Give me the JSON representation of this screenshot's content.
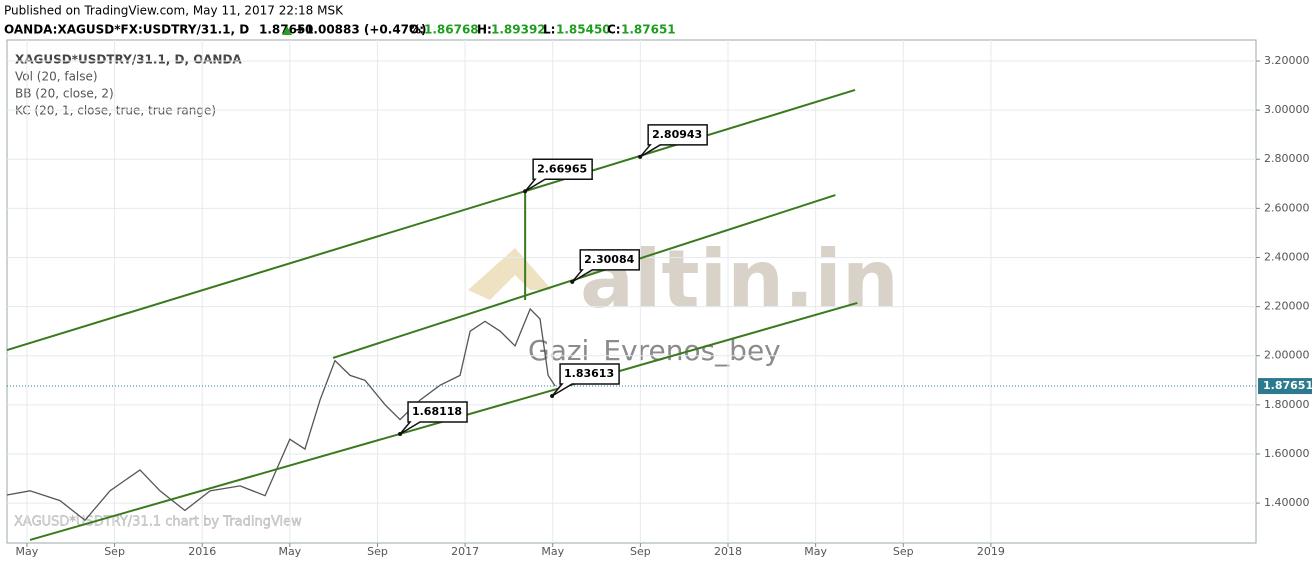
{
  "header": {
    "published": "Published on TradingView.com, May 11, 2017 22:18 MSK",
    "symbol": "OANDA:XAGUSD*FX:USDTRY/31.1, D",
    "last": "1.87651",
    "change": "+0.00883 (+0.47%)",
    "o_label": "O:",
    "o": "1.86768",
    "h_label": "H:",
    "h": "1.89392",
    "l_label": "L:",
    "l": "1.85450",
    "c_label": "C:",
    "c": "1.87651"
  },
  "legend": [
    "XAGUSD*USDTRY/31.1, D, OANDA",
    "Vol (20, false)",
    "BB (20, close, 2)",
    "KC (20, 1, close, true, true range)"
  ],
  "watermark": {
    "logo": "altin.in",
    "author": "Gazi_Evrenos_bey",
    "credit": "XAGUSD*USDTRY/31.1 chart by TradingView"
  },
  "chart_data": {
    "type": "line",
    "color": "#555555",
    "trend_color": "#3a7a1e",
    "x": [
      -0.91,
      0.14,
      1.51,
      2.65,
      3.79,
      5.16,
      6.07,
      7.21,
      8.36,
      9.73,
      10.87,
      12.0,
      12.69,
      13.38,
      14.06,
      14.75,
      15.43,
      16.35,
      17.03,
      17.95,
      18.86,
      19.77,
      20.23,
      20.91,
      21.6,
      22.28,
      22.97,
      23.42,
      23.79,
      24.11
    ],
    "values": [
      1.433,
      1.45,
      1.41,
      1.33,
      1.45,
      1.535,
      1.45,
      1.37,
      1.45,
      1.47,
      1.43,
      1.66,
      1.62,
      1.82,
      1.98,
      1.92,
      1.9,
      1.8,
      1.74,
      1.82,
      1.88,
      1.92,
      2.1,
      2.14,
      2.1,
      2.04,
      2.19,
      2.15,
      1.92,
      1.87651
    ],
    "last_value": 1.87651,
    "trend_lines": [
      {
        "x": [
          -0.91,
          37.8
        ],
        "values": [
          2.023,
          3.082
        ]
      },
      {
        "x": [
          13.97,
          36.9
        ],
        "values": [
          1.991,
          2.654
        ]
      },
      {
        "x": [
          0.14,
          37.9
        ],
        "values": [
          1.25,
          2.215
        ]
      },
      {
        "x": [
          22.74,
          22.74
        ],
        "values": [
          2.227,
          2.66965
        ]
      }
    ],
    "callouts": [
      {
        "x": 27.99,
        "value": 2.80943
      },
      {
        "x": 22.74,
        "value": 2.66965
      },
      {
        "x": 24.89,
        "value": 2.30084
      },
      {
        "x": 23.97,
        "value": 1.83613
      },
      {
        "x": 17.03,
        "value": 1.68118
      }
    ],
    "xlim": [
      -0.91,
      56.1
    ],
    "xticks": [
      {
        "value": 0,
        "label": "May"
      },
      {
        "value": 4,
        "label": "Sep"
      },
      {
        "value": 8,
        "label": "2016"
      },
      {
        "value": 12,
        "label": "May"
      },
      {
        "value": 16,
        "label": "Sep"
      },
      {
        "value": 20,
        "label": "2017"
      },
      {
        "value": 24,
        "label": "May"
      },
      {
        "value": 28,
        "label": "Sep"
      },
      {
        "value": 32,
        "label": "2018"
      },
      {
        "value": 36,
        "label": "May"
      },
      {
        "value": 40,
        "label": "Sep"
      },
      {
        "value": 44,
        "label": "2019"
      }
    ],
    "ylim": [
      1.2375,
      3.2855
    ],
    "yticks": [
      {
        "value": 1.4,
        "label": "1.40000"
      },
      {
        "value": 1.6,
        "label": "1.60000"
      },
      {
        "value": 1.8,
        "label": "1.80000"
      },
      {
        "value": 2.0,
        "label": "2.00000"
      },
      {
        "value": 2.2,
        "label": "2.20000"
      },
      {
        "value": 2.4,
        "label": "2.40000"
      },
      {
        "value": 2.6,
        "label": "2.60000"
      },
      {
        "value": 2.8,
        "label": "2.80000"
      },
      {
        "value": 3.0,
        "label": "3.00000"
      },
      {
        "value": 3.2,
        "label": "3.20000"
      }
    ],
    "grid": true
  }
}
